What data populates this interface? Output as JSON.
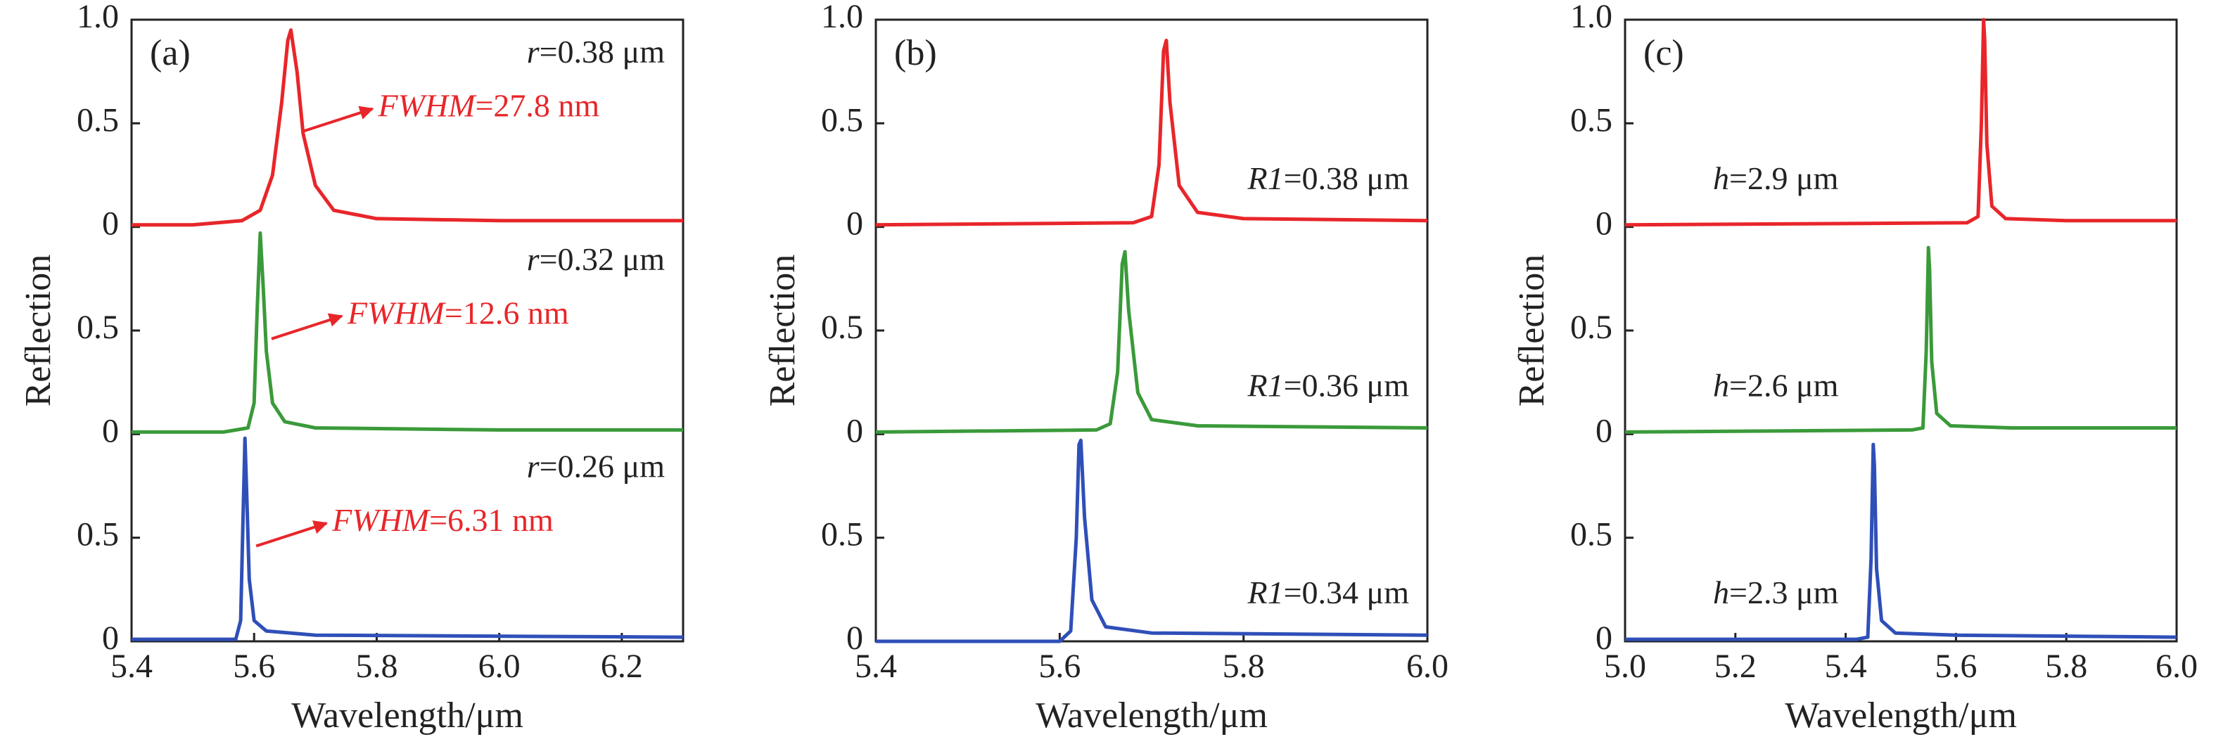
{
  "chart_data": [
    {
      "type": "line",
      "panel": "(a)",
      "xlabel": "Wavelength/μm",
      "ylabel": "Reflection",
      "xlim": [
        5.4,
        6.3
      ],
      "xticks": [
        5.4,
        5.6,
        5.8,
        {
          "value": 6,
          "label": "6.0"
        },
        6.2
      ],
      "ylim": [
        0,
        1
      ],
      "yticks": [
        0,
        0.5,
        {
          "value": 1,
          "label": "1.0"
        }
      ],
      "series": [
        {
          "name": "r=0.38 μm",
          "note": "FWHM=27.8 nm",
          "color": "#e8262a",
          "x": [
            5.4,
            5.5,
            5.58,
            5.61,
            5.63,
            5.645,
            5.655,
            5.66,
            5.67,
            5.68,
            5.7,
            5.73,
            5.8,
            6.0,
            6.3
          ],
          "values": [
            0.01,
            0.01,
            0.03,
            0.08,
            0.25,
            0.6,
            0.9,
            0.95,
            0.75,
            0.45,
            0.2,
            0.08,
            0.04,
            0.03,
            0.03
          ]
        },
        {
          "name": "r=0.32 μm",
          "note": "FWHM=12.6 nm",
          "color": "#3a9a3a",
          "x": [
            5.4,
            5.55,
            5.59,
            5.6,
            5.605,
            5.61,
            5.615,
            5.62,
            5.63,
            5.65,
            5.7,
            6.0,
            6.3
          ],
          "values": [
            0.01,
            0.01,
            0.03,
            0.15,
            0.6,
            0.97,
            0.7,
            0.4,
            0.15,
            0.06,
            0.03,
            0.02,
            0.02
          ]
        },
        {
          "name": "r=0.26 μm",
          "note": "FWHM=6.31 nm",
          "color": "#2f4fb8",
          "x": [
            5.4,
            5.57,
            5.578,
            5.582,
            5.585,
            5.588,
            5.592,
            5.6,
            5.62,
            5.7,
            6.3
          ],
          "values": [
            0.01,
            0.01,
            0.1,
            0.6,
            0.98,
            0.7,
            0.3,
            0.1,
            0.05,
            0.03,
            0.02
          ]
        }
      ]
    },
    {
      "type": "line",
      "panel": "(b)",
      "xlabel": "Wavelength/μm",
      "ylabel": "Reflection",
      "xlim": [
        5.4,
        6.0
      ],
      "xticks": [
        5.4,
        5.6,
        5.8,
        {
          "value": 6,
          "label": "6.0"
        }
      ],
      "ylim": [
        0,
        1
      ],
      "yticks": [
        0,
        0.5,
        {
          "value": 1,
          "label": "1.0"
        }
      ],
      "series": [
        {
          "name": "R1=0.38 μm",
          "color": "#e8262a",
          "x": [
            5.4,
            5.68,
            5.7,
            5.708,
            5.713,
            5.716,
            5.72,
            5.73,
            5.75,
            5.8,
            6.0
          ],
          "values": [
            0.01,
            0.02,
            0.05,
            0.3,
            0.85,
            0.9,
            0.6,
            0.2,
            0.07,
            0.04,
            0.03
          ]
        },
        {
          "name": "R1=0.36 μm",
          "color": "#3a9a3a",
          "x": [
            5.4,
            5.64,
            5.655,
            5.663,
            5.668,
            5.671,
            5.675,
            5.685,
            5.7,
            5.75,
            6.0
          ],
          "values": [
            0.01,
            0.02,
            0.05,
            0.3,
            0.82,
            0.88,
            0.6,
            0.2,
            0.07,
            0.04,
            0.03
          ]
        },
        {
          "name": "R1=0.34 μm",
          "color": "#2f4fb8",
          "x": [
            5.4,
            5.6,
            5.612,
            5.618,
            5.621,
            5.623,
            5.627,
            5.635,
            5.65,
            5.7,
            6.0
          ],
          "values": [
            0.0,
            0.0,
            0.05,
            0.5,
            0.95,
            0.97,
            0.6,
            0.2,
            0.07,
            0.04,
            0.03
          ]
        }
      ]
    },
    {
      "type": "line",
      "panel": "(c)",
      "xlabel": "Wavelength/μm",
      "ylabel": "Reflection",
      "xlim": [
        5.0,
        6.0
      ],
      "xticks": [
        {
          "value": 5,
          "label": "5.0"
        },
        5.2,
        5.4,
        5.6,
        5.8,
        {
          "value": 6,
          "label": "6.0"
        }
      ],
      "ylim": [
        0,
        1
      ],
      "yticks": [
        0,
        0.5,
        {
          "value": 1,
          "label": "1.0"
        }
      ],
      "series": [
        {
          "name": "h=2.9 μm",
          "color": "#e8262a",
          "x": [
            5.0,
            5.62,
            5.64,
            5.646,
            5.65,
            5.652,
            5.656,
            5.665,
            5.69,
            5.8,
            6.0
          ],
          "values": [
            0.01,
            0.02,
            0.05,
            0.5,
            1.0,
            0.9,
            0.4,
            0.1,
            0.04,
            0.03,
            0.03
          ]
        },
        {
          "name": "h=2.6 μm",
          "color": "#3a9a3a",
          "x": [
            5.0,
            5.52,
            5.54,
            5.546,
            5.55,
            5.552,
            5.556,
            5.565,
            5.59,
            5.7,
            6.0
          ],
          "values": [
            0.01,
            0.02,
            0.03,
            0.4,
            0.9,
            0.8,
            0.35,
            0.1,
            0.04,
            0.03,
            0.03
          ]
        },
        {
          "name": "h=2.3 μm",
          "color": "#2f4fb8",
          "x": [
            5.0,
            5.42,
            5.44,
            5.446,
            5.45,
            5.452,
            5.456,
            5.465,
            5.49,
            5.6,
            6.0
          ],
          "values": [
            0.01,
            0.01,
            0.02,
            0.4,
            0.95,
            0.85,
            0.35,
            0.1,
            0.04,
            0.03,
            0.02
          ]
        }
      ]
    }
  ]
}
